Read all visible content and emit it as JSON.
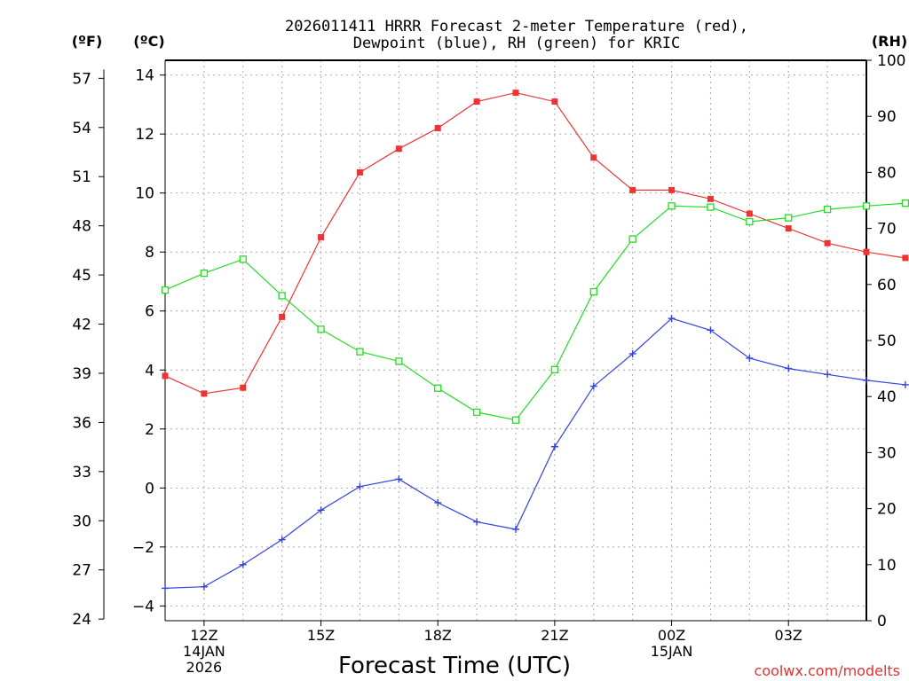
{
  "chart_data": {
    "type": "line",
    "title_line1": "2026011411 HRRR Forecast 2-meter Temperature (red),",
    "title_line2": "Dewpoint (blue), RH (green) for KRIC",
    "xlabel": "Forecast Time (UTC)",
    "credit": "coolwx.com/modelts",
    "unit_labels": {
      "fahrenheit": "(ºF)",
      "celsius": "(ºC)",
      "rh": "(RH)"
    },
    "x_hours": [
      11,
      12,
      13,
      14,
      15,
      16,
      17,
      18,
      19,
      20,
      21,
      22,
      23,
      24,
      25,
      26,
      27,
      28,
      29,
      30
    ],
    "x_range": [
      11,
      29
    ],
    "x_ticks": [
      {
        "hour": 12,
        "lines": [
          "12Z",
          "14JAN",
          "2026"
        ]
      },
      {
        "hour": 15,
        "lines": [
          "15Z"
        ]
      },
      {
        "hour": 18,
        "lines": [
          "18Z"
        ]
      },
      {
        "hour": 21,
        "lines": [
          "21Z"
        ]
      },
      {
        "hour": 24,
        "lines": [
          "00Z",
          "15JAN"
        ]
      },
      {
        "hour": 27,
        "lines": [
          "03Z"
        ]
      }
    ],
    "celsius_axis": {
      "range": [
        -4.5,
        14.5
      ],
      "ticks": [
        -4,
        -2,
        0,
        2,
        4,
        6,
        8,
        10,
        12,
        14
      ]
    },
    "fahrenheit_axis": {
      "ticks": [
        24,
        27,
        30,
        33,
        36,
        39,
        42,
        45,
        48,
        51,
        54,
        57
      ]
    },
    "rh_axis": {
      "range": [
        0,
        100
      ],
      "ticks": [
        0,
        10,
        20,
        30,
        40,
        50,
        60,
        70,
        80,
        90,
        100
      ]
    },
    "series": [
      {
        "name": "2-meter Temperature",
        "axis": "celsius",
        "color": "#ee3333",
        "marker": "filled-square",
        "values": [
          3.8,
          3.2,
          3.4,
          5.8,
          8.5,
          10.7,
          11.5,
          12.2,
          13.1,
          13.4,
          13.1,
          11.2,
          10.1,
          10.1,
          9.8,
          9.3,
          8.8,
          8.3,
          8.0,
          7.8
        ]
      },
      {
        "name": "Dewpoint",
        "axis": "celsius",
        "color": "#3344dd",
        "marker": "plus",
        "values": [
          -3.4,
          -3.35,
          -2.6,
          -1.75,
          -0.75,
          0.05,
          0.3,
          -0.5,
          -1.15,
          -1.4,
          1.4,
          3.45,
          4.55,
          5.75,
          5.35,
          4.4,
          4.05,
          3.85,
          3.65,
          3.5
        ]
      },
      {
        "name": "RH",
        "axis": "rh",
        "color": "#22dd22",
        "marker": "open-square",
        "values": [
          59,
          62,
          64.5,
          58,
          52,
          48,
          46.3,
          41.5,
          37.2,
          35.8,
          44.8,
          58.7,
          68.1,
          74,
          73.8,
          71.2,
          71.9,
          73.4,
          74,
          74.5
        ]
      }
    ]
  }
}
